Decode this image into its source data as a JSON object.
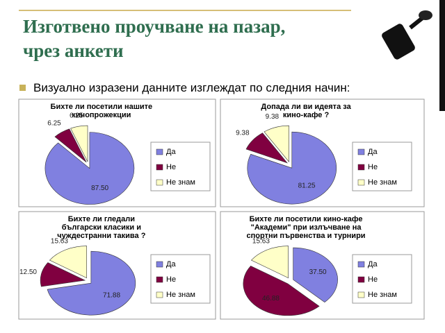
{
  "slide": {
    "title_lines": [
      "Изготвено проучване на пазар,",
      "чрез анкети"
    ],
    "bullet": "Визуално изразени данните изглеждат по следния начин:"
  },
  "chart_data": [
    {
      "type": "pie",
      "title": [
        "Бихте ли посетили нашите",
        "кинопрожекции"
      ],
      "categories": [
        "Да",
        "Не",
        "Не знам"
      ],
      "values": [
        87.5,
        6.25,
        6.25
      ],
      "value_labels": [
        "87.50",
        "6.25",
        "6.25"
      ],
      "colors": [
        "#8080e0",
        "#800040",
        "#ffffc8"
      ]
    },
    {
      "type": "pie",
      "title": [
        "Допада ли ви идеята за",
        "кино-кафе ?"
      ],
      "categories": [
        "Да",
        "Не",
        "Не знам"
      ],
      "values": [
        81.25,
        9.38,
        9.38
      ],
      "value_labels": [
        "81.25",
        "9.38",
        "9.38"
      ],
      "colors": [
        "#8080e0",
        "#800040",
        "#ffffc8"
      ]
    },
    {
      "type": "pie",
      "title": [
        "Бихте ли гледали",
        "български класики и",
        "чуждестранни такива ?"
      ],
      "categories": [
        "Да",
        "Не",
        "Не знам"
      ],
      "values": [
        71.88,
        12.5,
        15.63
      ],
      "value_labels": [
        "71.88",
        "12.50",
        "15.63"
      ],
      "colors": [
        "#8080e0",
        "#800040",
        "#ffffc8"
      ]
    },
    {
      "type": "pie",
      "title": [
        "Бихте ли посетили кино-кафе",
        "\"Академи\" при излъчване на",
        "спортни първенства и турнири"
      ],
      "categories": [
        "Да",
        "Не",
        "Не знам"
      ],
      "values": [
        37.5,
        46.88,
        15.63
      ],
      "value_labels": [
        "37.50",
        "46.88",
        "15.63"
      ],
      "colors": [
        "#8080e0",
        "#800040",
        "#ffffc8"
      ]
    }
  ]
}
